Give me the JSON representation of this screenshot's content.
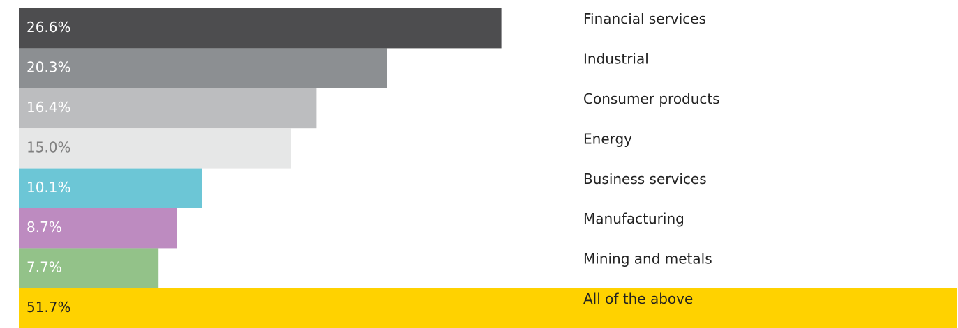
{
  "chart_data": {
    "type": "hbar",
    "categories": [
      "Financial services",
      "Industrial",
      "Consumer products",
      "Energy",
      "Business services",
      "Manufacturing",
      "Mining and metals",
      "All of the above"
    ],
    "values": [
      26.6,
      20.3,
      16.4,
      15.0,
      10.1,
      8.7,
      7.7,
      51.7
    ],
    "value_labels": [
      "26.6%",
      "20.3%",
      "16.4%",
      "15.0%",
      "10.1%",
      "8.7%",
      "7.7%",
      "51.7%"
    ],
    "colors": [
      "#4d4d4f",
      "#8c8f92",
      "#bcbdbf",
      "#e6e7e7",
      "#6cc6d6",
      "#bd8bc0",
      "#93c289",
      "#ffd200"
    ],
    "label_colors": [
      "#ffffff",
      "#ffffff",
      "#ffffff",
      "#808080",
      "#ffffff",
      "#ffffff",
      "#ffffff",
      "#222222"
    ]
  }
}
